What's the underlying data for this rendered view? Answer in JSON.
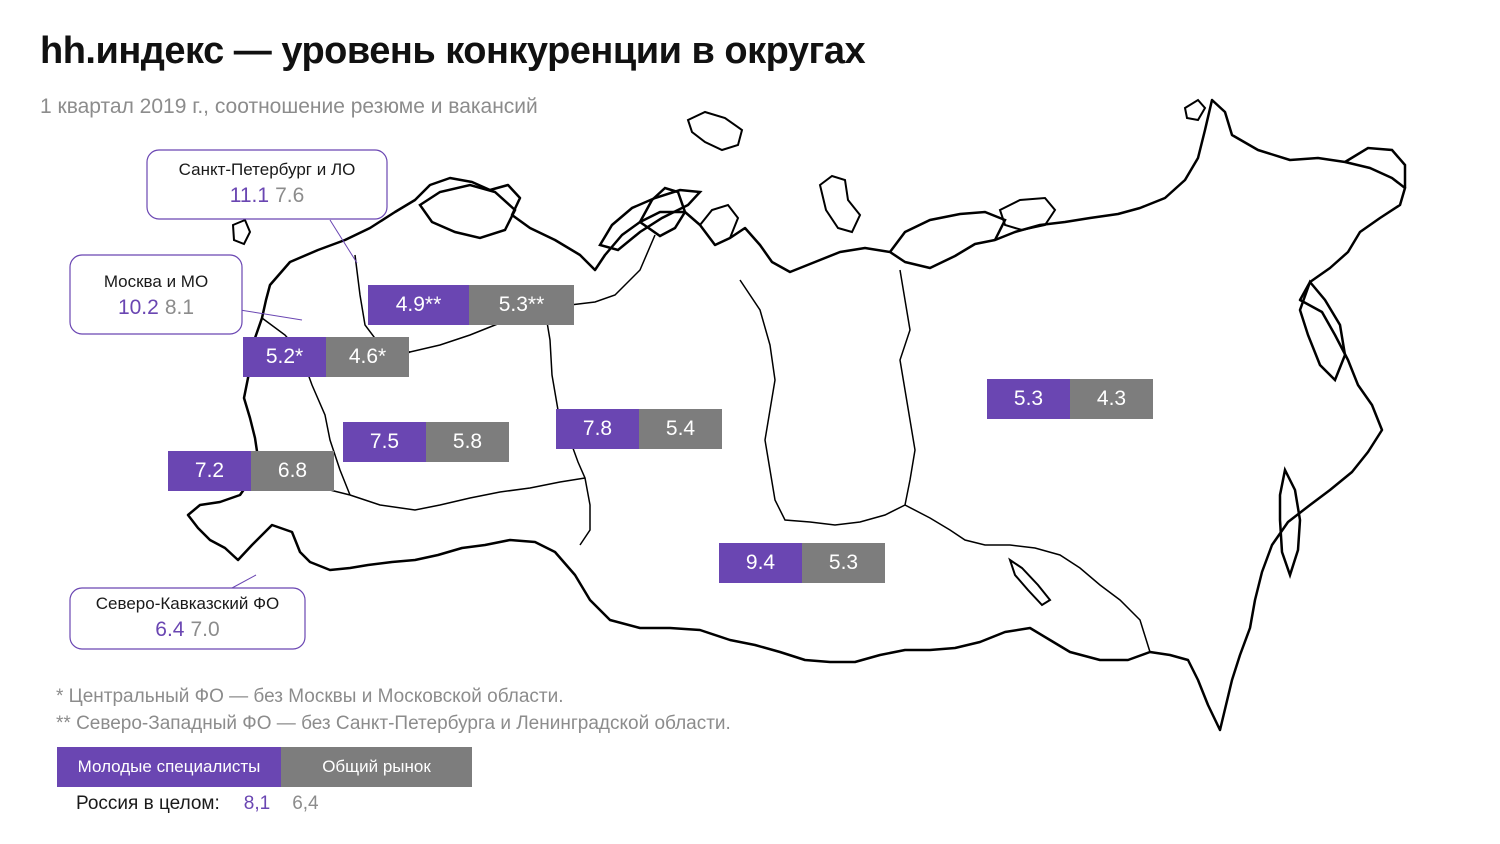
{
  "title": "hh.индекс — уровень конкуренции в округах",
  "subtitle": "1 квартал 2019 г., соотношение резюме и вакансий",
  "colors": {
    "young": "#6a46b2",
    "total": "#7d7d7d",
    "outline": "#000000"
  },
  "districts": [
    {
      "id": "nw",
      "young": "4.9**",
      "total": "5.3**"
    },
    {
      "id": "central",
      "young": "5.2*",
      "total": "4.6*"
    },
    {
      "id": "volga",
      "young": "7.5",
      "total": "5.8"
    },
    {
      "id": "south",
      "young": "7.2",
      "total": "6.8"
    },
    {
      "id": "ural",
      "young": "7.8",
      "total": "5.4"
    },
    {
      "id": "siberia",
      "young": "9.4",
      "total": "5.3"
    },
    {
      "id": "fareast",
      "young": "5.3",
      "total": "4.3"
    }
  ],
  "callouts": {
    "spb": {
      "name": "Санкт-Петербург и ЛО",
      "young": "11.1",
      "total": "7.6"
    },
    "msk": {
      "name": "Москва и МО",
      "young": "10.2",
      "total": "8.1"
    },
    "nc": {
      "name": "Северо-Кавказский ФО",
      "young": "6.4",
      "total": "7.0"
    }
  },
  "footnotes": [
    "*  Центральный ФО — без Москвы и Московской области.",
    "** Северо-Западный ФО — без Санкт-Петербурга и Ленинградской области."
  ],
  "legend": {
    "young": "Молодые специалисты",
    "total": "Общий рынок"
  },
  "russia": {
    "label": "Россия в целом:",
    "young": "8,1",
    "total": "6,4"
  }
}
